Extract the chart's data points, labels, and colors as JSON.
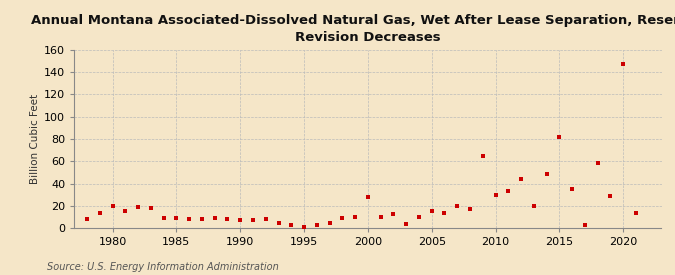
{
  "title": "Annual Montana Associated-Dissolved Natural Gas, Wet After Lease Separation, Reserves\nRevision Decreases",
  "ylabel": "Billion Cubic Feet",
  "source": "Source: U.S. Energy Information Administration",
  "background_color": "#f5e6c8",
  "plot_background_color": "#f5e6c8",
  "marker_color": "#cc0000",
  "years": [
    1978,
    1979,
    1980,
    1981,
    1982,
    1983,
    1984,
    1985,
    1986,
    1987,
    1988,
    1989,
    1990,
    1991,
    1992,
    1993,
    1994,
    1995,
    1996,
    1997,
    1998,
    1999,
    2000,
    2001,
    2002,
    2003,
    2004,
    2005,
    2006,
    2007,
    2008,
    2009,
    2010,
    2011,
    2012,
    2013,
    2014,
    2015,
    2016,
    2017,
    2018,
    2019,
    2020,
    2021
  ],
  "values": [
    8,
    14,
    20,
    15,
    19,
    18,
    9,
    9,
    8,
    8,
    9,
    8,
    7,
    7,
    8,
    5,
    3,
    1,
    3,
    5,
    9,
    10,
    28,
    10,
    13,
    4,
    10,
    15,
    14,
    20,
    17,
    65,
    30,
    33,
    44,
    20,
    49,
    82,
    35,
    3,
    58,
    29,
    147,
    14
  ],
  "xlim": [
    1977,
    2023
  ],
  "ylim": [
    0,
    160
  ],
  "yticks": [
    0,
    20,
    40,
    60,
    80,
    100,
    120,
    140,
    160
  ],
  "xticks": [
    1980,
    1985,
    1990,
    1995,
    2000,
    2005,
    2010,
    2015,
    2020
  ],
  "title_fontsize": 9.5,
  "ylabel_fontsize": 7.5,
  "tick_fontsize": 8,
  "source_fontsize": 7
}
